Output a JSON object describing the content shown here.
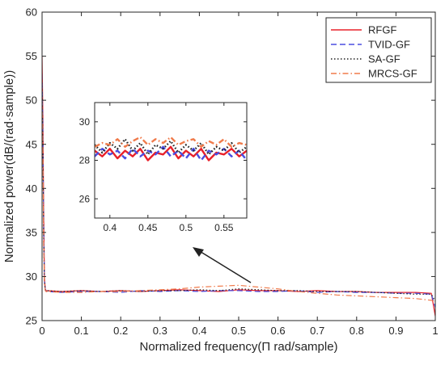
{
  "chart_data": [
    {
      "type": "line",
      "title": "",
      "xlabel": "Normalized frequency(Π rad/sample)",
      "ylabel": "Normalized power(dB/(rad·sample))",
      "xlim": [
        0,
        1
      ],
      "ylim": [
        25,
        60
      ],
      "xticks": [
        0,
        0.1,
        0.2,
        0.3,
        0.4,
        0.5,
        0.6,
        0.7,
        0.8,
        0.9,
        1
      ],
      "xtick_labels": [
        "0",
        "0.1",
        "0.2",
        "0.3",
        "0.4",
        "0.5",
        "0.6",
        "0.7",
        "0.8",
        "0.9",
        "1"
      ],
      "yticks": [
        25,
        30,
        35,
        40,
        45,
        50,
        55,
        60
      ],
      "ytick_labels": [
        "25",
        "30",
        "35",
        "40",
        "45",
        "50",
        "55",
        "60"
      ],
      "grid": false,
      "legend_position": "top-right",
      "x": [
        0,
        0.002,
        0.004,
        0.006,
        0.008,
        0.01,
        0.05,
        0.1,
        0.15,
        0.2,
        0.25,
        0.3,
        0.35,
        0.4,
        0.45,
        0.5,
        0.55,
        0.6,
        0.65,
        0.7,
        0.75,
        0.8,
        0.85,
        0.9,
        0.95,
        0.99,
        1
      ],
      "series": [
        {
          "name": "RFGF",
          "color": "#e8202a",
          "dash": "solid",
          "values": [
            55,
            48,
            38,
            30,
            28.6,
            28.4,
            28.3,
            28.4,
            28.3,
            28.4,
            28.3,
            28.4,
            28.5,
            28.4,
            28.3,
            28.5,
            28.4,
            28.4,
            28.3,
            28.4,
            28.3,
            28.3,
            28.2,
            28.2,
            28.2,
            28.1,
            25.5
          ]
        },
        {
          "name": "TVID-GF",
          "color": "#4a4de0",
          "dash": "dashed",
          "values": [
            53,
            46,
            36,
            29.5,
            28.6,
            28.3,
            28.2,
            28.3,
            28.3,
            28.2,
            28.4,
            28.3,
            28.4,
            28.3,
            28.4,
            28.4,
            28.3,
            28.3,
            28.4,
            28.2,
            28.3,
            28.2,
            28.2,
            28.1,
            28.1,
            28.0,
            26.5
          ]
        },
        {
          "name": "SA-GF",
          "color": "#222222",
          "dash": "dotted",
          "values": [
            52,
            45,
            35,
            29.5,
            28.5,
            28.4,
            28.3,
            28.4,
            28.3,
            28.4,
            28.3,
            28.4,
            28.4,
            28.5,
            28.4,
            28.6,
            28.5,
            28.4,
            28.4,
            28.3,
            28.3,
            28.3,
            28.2,
            28.1,
            28.0,
            28.0,
            27.2
          ]
        },
        {
          "name": "MRCS-GF",
          "color": "#f07a4a",
          "dash": "dashdot",
          "values": [
            50,
            44,
            34,
            29.3,
            28.4,
            28.3,
            28.2,
            28.2,
            28.3,
            28.3,
            28.4,
            28.5,
            28.6,
            28.8,
            28.9,
            29.0,
            28.8,
            28.6,
            28.3,
            28.1,
            27.9,
            27.8,
            27.7,
            27.6,
            27.5,
            27.3,
            27.2
          ]
        }
      ]
    },
    {
      "type": "line",
      "title": "",
      "xlim": [
        0.38,
        0.58
      ],
      "ylim": [
        25,
        31
      ],
      "xticks": [
        0.4,
        0.45,
        0.5,
        0.55
      ],
      "xtick_labels": [
        "0.4",
        "0.45",
        "0.5",
        "0.55"
      ],
      "yticks": [
        26,
        28,
        30
      ],
      "ytick_labels": [
        "26",
        "28",
        "30"
      ],
      "grid": false,
      "x": [
        0.38,
        0.39,
        0.4,
        0.41,
        0.42,
        0.43,
        0.44,
        0.45,
        0.46,
        0.47,
        0.48,
        0.49,
        0.5,
        0.51,
        0.52,
        0.53,
        0.54,
        0.55,
        0.56,
        0.57,
        0.58
      ],
      "series": [
        {
          "name": "RFGF",
          "color": "#e8202a",
          "dash": "solid",
          "values": [
            28.5,
            28.2,
            28.6,
            28.1,
            28.5,
            28.2,
            28.6,
            28.0,
            28.4,
            28.3,
            28.7,
            28.1,
            28.5,
            28.2,
            28.6,
            28.0,
            28.4,
            28.3,
            28.6,
            28.2,
            28.5
          ]
        },
        {
          "name": "TVID-GF",
          "color": "#4a4de0",
          "dash": "dashed",
          "values": [
            28.2,
            28.6,
            28.3,
            28.5,
            28.1,
            28.6,
            28.2,
            28.5,
            28.3,
            28.7,
            28.2,
            28.5,
            28.1,
            28.6,
            28.0,
            28.5,
            28.3,
            28.6,
            28.2,
            28.5,
            28.0
          ]
        },
        {
          "name": "SA-GF",
          "color": "#222222",
          "dash": "dotted",
          "values": [
            28.8,
            28.4,
            28.9,
            28.6,
            29.1,
            28.5,
            28.9,
            28.3,
            28.8,
            28.6,
            29.0,
            28.4,
            28.8,
            28.5,
            28.9,
            28.3,
            28.7,
            28.5,
            28.9,
            28.4,
            28.7
          ]
        },
        {
          "name": "MRCS-GF",
          "color": "#f07a4a",
          "dash": "dashdot",
          "values": [
            28.7,
            28.9,
            28.8,
            29.1,
            28.7,
            29.0,
            29.2,
            28.8,
            29.1,
            28.9,
            29.2,
            28.8,
            29.0,
            29.1,
            28.7,
            29.0,
            28.8,
            29.1,
            28.7,
            28.9,
            28.8
          ]
        }
      ]
    }
  ]
}
